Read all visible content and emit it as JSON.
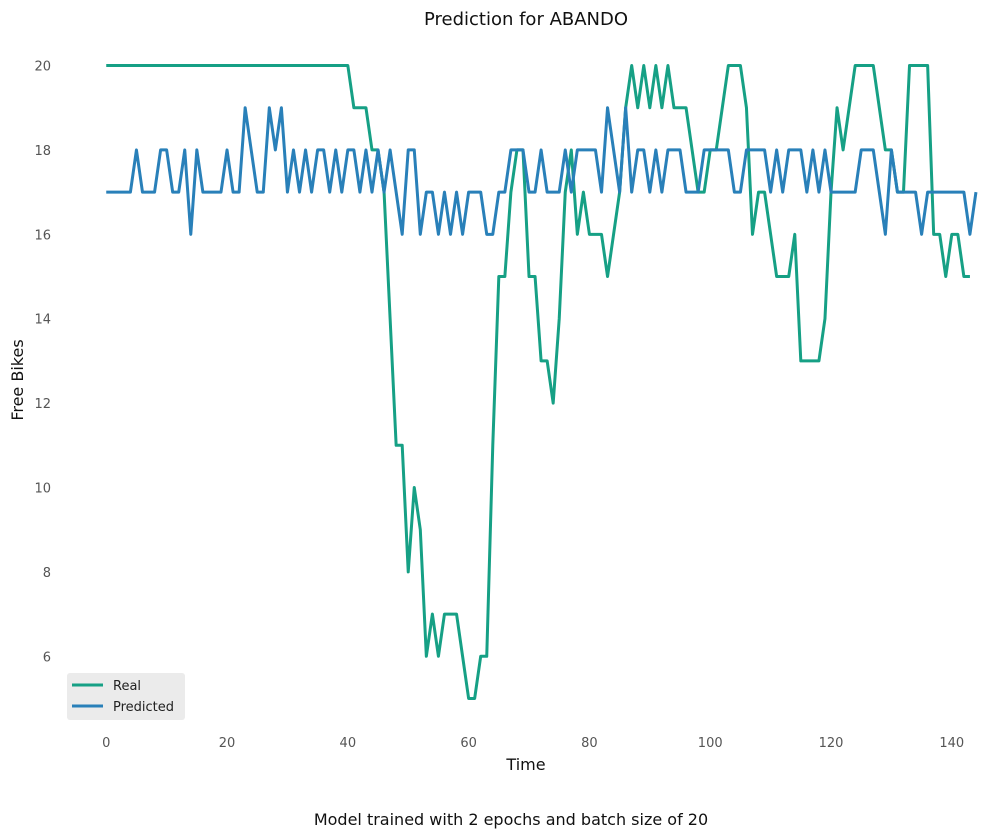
{
  "chart_data": {
    "type": "line",
    "title": "Prediction for ABANDO",
    "xlabel": "Time",
    "ylabel": "Free Bikes",
    "caption": "Model trained with 2 epochs and batch size of 20",
    "xlim": [
      -6,
      145
    ],
    "ylim": [
      4.3,
      20.7
    ],
    "xticks": [
      0,
      20,
      40,
      60,
      80,
      100,
      120,
      140
    ],
    "yticks": [
      6,
      8,
      10,
      12,
      14,
      16,
      18,
      20
    ],
    "grid": false,
    "legend_position": "lower-left",
    "series": [
      {
        "name": "Real",
        "color": "#16a085",
        "values": [
          20,
          20,
          20,
          20,
          20,
          20,
          20,
          20,
          20,
          20,
          20,
          20,
          20,
          20,
          20,
          20,
          20,
          20,
          20,
          20,
          20,
          20,
          20,
          20,
          20,
          20,
          20,
          20,
          20,
          20,
          20,
          20,
          20,
          20,
          20,
          20,
          20,
          20,
          20,
          20,
          20,
          19,
          19,
          19,
          18,
          18,
          17,
          14,
          11,
          11,
          8,
          10,
          9,
          6,
          7,
          6,
          7,
          7,
          7,
          6,
          5,
          5,
          6,
          6,
          11,
          15,
          15,
          17,
          18,
          18,
          15,
          15,
          13,
          13,
          12,
          14,
          17,
          18,
          16,
          17,
          16,
          16,
          16,
          15,
          16,
          17,
          19,
          20,
          19,
          20,
          19,
          20,
          19,
          20,
          19,
          19,
          19,
          18,
          17,
          17,
          18,
          18,
          19,
          20,
          20,
          20,
          19,
          16,
          17,
          17,
          16,
          15,
          15,
          15,
          16,
          13,
          13,
          13,
          13,
          14,
          17,
          19,
          18,
          19,
          20,
          20,
          20,
          20,
          19,
          18,
          18,
          17,
          17,
          20,
          20,
          20,
          20,
          16,
          16,
          15,
          16,
          16,
          15,
          15
        ]
      },
      {
        "name": "Predicted",
        "color": "#2980b9",
        "values": [
          17,
          17,
          17,
          17,
          17,
          18,
          17,
          17,
          17,
          18,
          18,
          17,
          17,
          18,
          16,
          18,
          17,
          17,
          17,
          17,
          18,
          17,
          17,
          19,
          18,
          17,
          17,
          19,
          18,
          19,
          17,
          18,
          17,
          18,
          17,
          18,
          18,
          17,
          18,
          17,
          18,
          18,
          17,
          18,
          17,
          18,
          17,
          18,
          17,
          16,
          18,
          18,
          16,
          17,
          17,
          16,
          17,
          16,
          17,
          16,
          17,
          17,
          17,
          16,
          16,
          17,
          17,
          18,
          18,
          18,
          17,
          17,
          18,
          17,
          17,
          17,
          18,
          17,
          18,
          18,
          18,
          18,
          17,
          19,
          18,
          17,
          19,
          17,
          18,
          18,
          17,
          18,
          17,
          18,
          18,
          18,
          17,
          17,
          17,
          18,
          18,
          18,
          18,
          18,
          17,
          17,
          18,
          18,
          18,
          18,
          17,
          18,
          17,
          18,
          18,
          18,
          17,
          18,
          17,
          18,
          17,
          17,
          17,
          17,
          17,
          18,
          18,
          18,
          17,
          16,
          18,
          17,
          17,
          17,
          17,
          16,
          17,
          17,
          17,
          17,
          17,
          17,
          17,
          16,
          17
        ]
      }
    ]
  }
}
